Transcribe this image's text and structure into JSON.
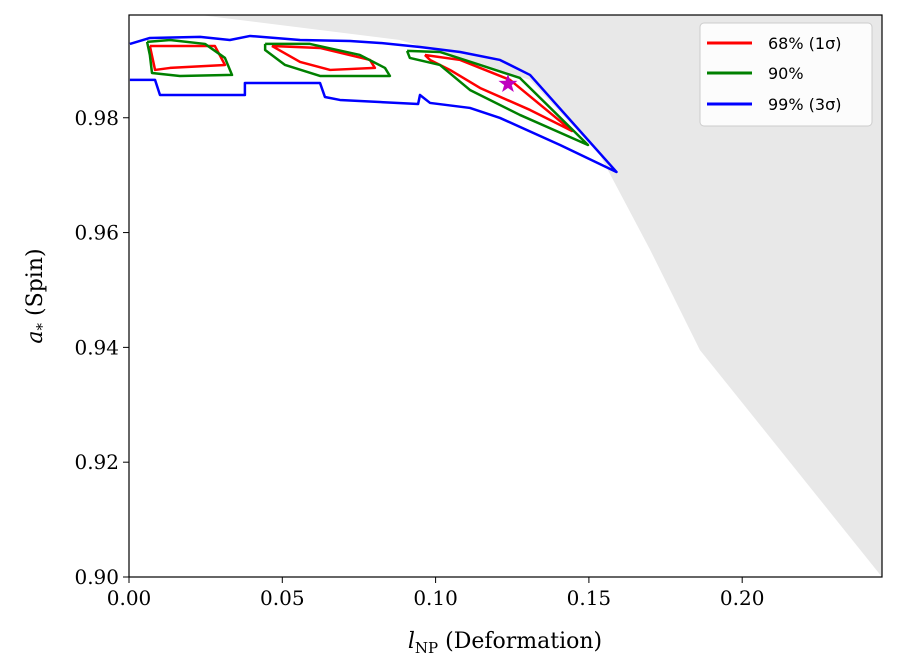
{
  "chart_data": {
    "type": "line",
    "xlabel": "l_NP (Deformation)",
    "xlabel_main": "l",
    "xlabel_sub": "NP",
    "xlabel_rest": " (Deformation)",
    "ylabel": "a_* (Spin)",
    "ylabel_main": "a",
    "ylabel_sub": "*",
    "ylabel_rest": " (Spin)",
    "xlim": [
      0.0,
      0.2456
    ],
    "ylim": [
      0.9,
      0.9979
    ],
    "xticks": [
      "0.00",
      "0.05",
      "0.10",
      "0.15",
      "0.20"
    ],
    "xtick_values": [
      0.0,
      0.05,
      0.1,
      0.15,
      0.2
    ],
    "yticks": [
      "0.90",
      "0.92",
      "0.94",
      "0.96",
      "0.98"
    ],
    "ytick_values": [
      0.9,
      0.92,
      0.94,
      0.96,
      0.98
    ],
    "grid": false,
    "legend_position": "top-right",
    "excluded_region_color": "#e8e8e8",
    "excluded_region_boundary": [
      [
        0.0232,
        0.9979
      ],
      [
        0.0884,
        0.99355
      ],
      [
        0.1308,
        0.98659
      ],
      [
        0.1536,
        0.97352
      ],
      [
        0.17,
        0.95697
      ],
      [
        0.1862,
        0.93955
      ],
      [
        0.2456,
        0.9
      ]
    ],
    "best_fit": {
      "x": 0.1236,
      "y": 0.98589,
      "color": "#bf00bf",
      "marker": "star"
    },
    "series": [
      {
        "name": "68% (1σ)",
        "color": "#ff0000",
        "contours": [
          [
            [
              0.0068,
              0.99251
            ],
            [
              0.028,
              0.99251
            ],
            [
              0.0313,
              0.9892
            ],
            [
              0.0134,
              0.98868
            ],
            [
              0.0085,
              0.98833
            ],
            [
              0.0068,
              0.99251
            ]
          ],
          [
            [
              0.0466,
              0.99251
            ],
            [
              0.0623,
              0.99216
            ],
            [
              0.0786,
              0.99007
            ],
            [
              0.0802,
              0.98868
            ],
            [
              0.0656,
              0.98833
            ],
            [
              0.0558,
              0.98972
            ],
            [
              0.0466,
              0.99251
            ]
          ],
          [
            [
              0.0965,
              0.99094
            ],
            [
              0.108,
              0.99007
            ],
            [
              0.1243,
              0.98659
            ],
            [
              0.1445,
              0.9777
            ],
            [
              0.1308,
              0.98136
            ],
            [
              0.1145,
              0.98519
            ],
            [
              0.1047,
              0.98833
            ],
            [
              0.0982,
              0.99007
            ],
            [
              0.0965,
              0.99094
            ]
          ]
        ]
      },
      {
        "name": "90%",
        "color": "#008000",
        "contours": [
          [
            [
              0.0059,
              0.99321
            ],
            [
              0.0134,
              0.99355
            ],
            [
              0.0248,
              0.99286
            ],
            [
              0.0313,
              0.99042
            ],
            [
              0.0336,
              0.98746
            ],
            [
              0.0166,
              0.98728
            ],
            [
              0.0075,
              0.9878
            ],
            [
              0.0068,
              0.99094
            ],
            [
              0.0059,
              0.99321
            ]
          ],
          [
            [
              0.0444,
              0.99286
            ],
            [
              0.059,
              0.99286
            ],
            [
              0.0753,
              0.99094
            ],
            [
              0.0835,
              0.98868
            ],
            [
              0.0851,
              0.98728
            ],
            [
              0.0623,
              0.98728
            ],
            [
              0.0509,
              0.9892
            ],
            [
              0.0444,
              0.99181
            ],
            [
              0.0444,
              0.99286
            ]
          ],
          [
            [
              0.0907,
              0.99164
            ],
            [
              0.1014,
              0.99146
            ],
            [
              0.1145,
              0.9892
            ],
            [
              0.1275,
              0.98693
            ],
            [
              0.1497,
              0.97526
            ],
            [
              0.1275,
              0.98049
            ],
            [
              0.1112,
              0.98484
            ],
            [
              0.1014,
              0.9892
            ],
            [
              0.0916,
              0.99042
            ],
            [
              0.0907,
              0.99164
            ]
          ]
        ]
      },
      {
        "name": "99% (3σ)",
        "color": "#0000ff",
        "contours": [
          [
            [
              0.0003,
              0.99286
            ],
            [
              0.0068,
              0.9939
            ],
            [
              0.0232,
              0.99408
            ],
            [
              0.0329,
              0.99355
            ],
            [
              0.0395,
              0.99425
            ],
            [
              0.0558,
              0.99355
            ],
            [
              0.0721,
              0.99338
            ],
            [
              0.0819,
              0.99303
            ],
            [
              0.0949,
              0.99233
            ],
            [
              0.108,
              0.99146
            ],
            [
              0.121,
              0.99007
            ],
            [
              0.1308,
              0.98746
            ],
            [
              0.159,
              0.97056
            ],
            [
              0.1406,
              0.97526
            ],
            [
              0.121,
              0.97997
            ],
            [
              0.1112,
              0.98171
            ],
            [
              0.0982,
              0.98258
            ],
            [
              0.0949,
              0.98397
            ],
            [
              0.0943,
              0.9824
            ],
            [
              0.0688,
              0.9831
            ],
            [
              0.0639,
              0.98362
            ],
            [
              0.0623,
              0.98606
            ],
            [
              0.0378,
              0.98606
            ],
            [
              0.0378,
              0.98397
            ],
            [
              0.0101,
              0.98397
            ],
            [
              0.0085,
              0.98659
            ],
            [
              0.0003,
              0.98659
            ]
          ]
        ]
      }
    ]
  }
}
